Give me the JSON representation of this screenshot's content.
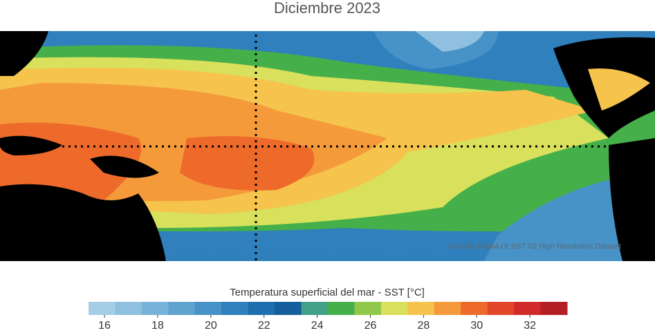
{
  "title": "Diciembre 2023",
  "source": "Fuente: NOAA OI SST V2 High Resolution Dataset",
  "colorbar": {
    "label": "Temperatura superficial del mar - SST  [°C]",
    "lim": [
      15.4,
      33.4
    ],
    "colors": [
      "#a6cde6",
      "#8fc0e0",
      "#77b2d9",
      "#5fa3d1",
      "#4792c7",
      "#2f80bc",
      "#1e6fae",
      "#155f9c",
      "#41a085",
      "#45b04a",
      "#8fc84b",
      "#d8e05c",
      "#f6c34c",
      "#f49a3b",
      "#ee6a2b",
      "#e2472a",
      "#d22a2a",
      "#b41e25"
    ],
    "ticks": [
      16,
      18,
      20,
      22,
      24,
      26,
      28,
      30,
      32
    ]
  }
}
